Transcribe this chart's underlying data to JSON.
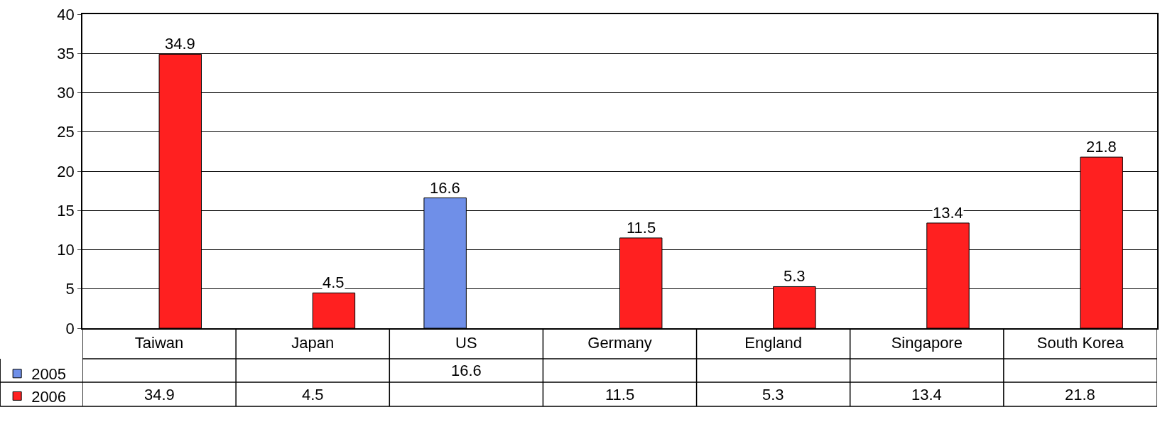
{
  "chart_data": {
    "type": "bar",
    "categories": [
      "Taiwan",
      "Japan",
      "US",
      "Germany",
      "England",
      "Singapore",
      "South Korea"
    ],
    "series": [
      {
        "name": "2005",
        "color": "#6f8fe8",
        "values": [
          null,
          null,
          16.6,
          null,
          null,
          null,
          null
        ]
      },
      {
        "name": "2006",
        "color": "#ff2020",
        "values": [
          34.9,
          4.5,
          null,
          11.5,
          5.3,
          13.4,
          21.8
        ]
      }
    ],
    "annotations": [
      "16.6",
      "34.9",
      "4.5",
      "11.5",
      "5.3",
      "13.4",
      "21.8"
    ],
    "ylim": [
      0,
      40
    ],
    "yticks": [
      0,
      5,
      10,
      15,
      20,
      25,
      30,
      35,
      40
    ],
    "grid": "y",
    "data_labels": true,
    "legend": "bottom left"
  }
}
